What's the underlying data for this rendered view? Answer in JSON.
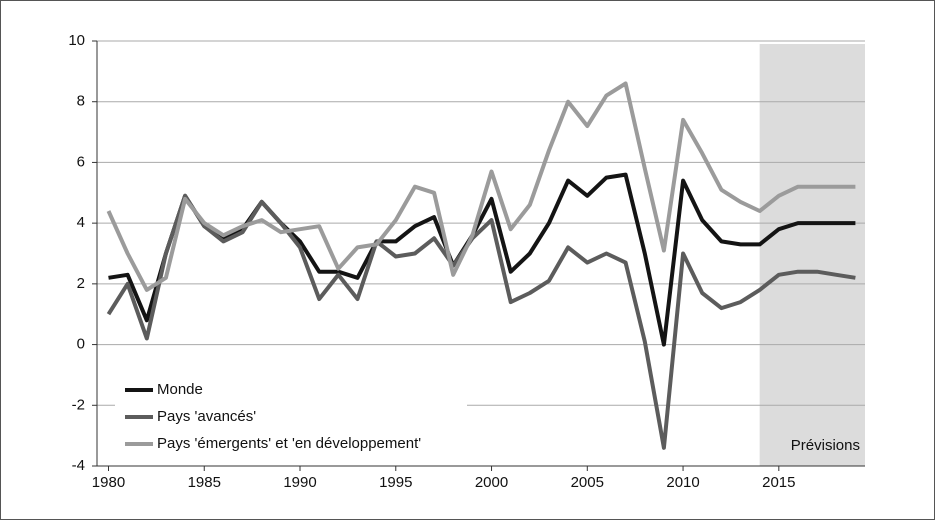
{
  "chart_data": {
    "type": "line",
    "x": [
      1980,
      1981,
      1982,
      1983,
      1984,
      1985,
      1986,
      1987,
      1988,
      1989,
      1990,
      1991,
      1992,
      1993,
      1994,
      1995,
      1996,
      1997,
      1998,
      1999,
      2000,
      2001,
      2002,
      2003,
      2004,
      2005,
      2006,
      2007,
      2008,
      2009,
      2010,
      2011,
      2012,
      2013,
      2014,
      2015,
      2016,
      2017,
      2018,
      2019
    ],
    "series": [
      {
        "name": "Monde",
        "color": "#141414",
        "values": [
          2.2,
          2.3,
          0.8,
          3.0,
          4.9,
          3.9,
          3.5,
          3.8,
          4.7,
          4.0,
          3.4,
          2.4,
          2.4,
          2.2,
          3.4,
          3.4,
          3.9,
          4.2,
          2.6,
          3.6,
          4.8,
          2.4,
          3.0,
          4.0,
          5.4,
          4.9,
          5.5,
          5.6,
          3.0,
          0.0,
          5.4,
          4.1,
          3.4,
          3.3,
          3.3,
          3.8,
          4.0,
          4.0,
          4.0,
          4.0
        ]
      },
      {
        "name": "Pays 'avancés'",
        "color": "#5c5c5c",
        "values": [
          1.0,
          2.0,
          0.2,
          3.0,
          4.9,
          3.9,
          3.4,
          3.7,
          4.7,
          4.0,
          3.2,
          1.5,
          2.3,
          1.5,
          3.4,
          2.9,
          3.0,
          3.5,
          2.6,
          3.5,
          4.1,
          1.4,
          1.7,
          2.1,
          3.2,
          2.7,
          3.0,
          2.7,
          0.1,
          -3.4,
          3.0,
          1.7,
          1.2,
          1.4,
          1.8,
          2.3,
          2.4,
          2.4,
          2.3,
          2.2
        ]
      },
      {
        "name": "Pays 'émergents' et 'en développement'",
        "color": "#9b9b9b",
        "values": [
          4.4,
          3.0,
          1.8,
          2.2,
          4.8,
          4.0,
          3.6,
          3.9,
          4.1,
          3.7,
          3.8,
          3.9,
          2.5,
          3.2,
          3.3,
          4.1,
          5.2,
          5.0,
          2.3,
          3.6,
          5.7,
          3.8,
          4.6,
          6.4,
          8.0,
          7.2,
          8.2,
          8.6,
          5.8,
          3.1,
          7.4,
          6.3,
          5.1,
          4.7,
          4.4,
          4.9,
          5.2,
          5.2,
          5.2,
          5.2
        ]
      }
    ],
    "xlim": [
      1979.4,
      2019.5
    ],
    "xticks": [
      1980,
      1985,
      1990,
      1995,
      2000,
      2005,
      2010,
      2015
    ],
    "ylim": [
      -4,
      10
    ],
    "yticks": [
      -4,
      -2,
      0,
      2,
      4,
      6,
      8,
      10
    ],
    "grid": true,
    "legend": "lower left",
    "shaded_region": {
      "label": "Prévisions",
      "from": 2014,
      "color": "#dcdcdc"
    }
  }
}
